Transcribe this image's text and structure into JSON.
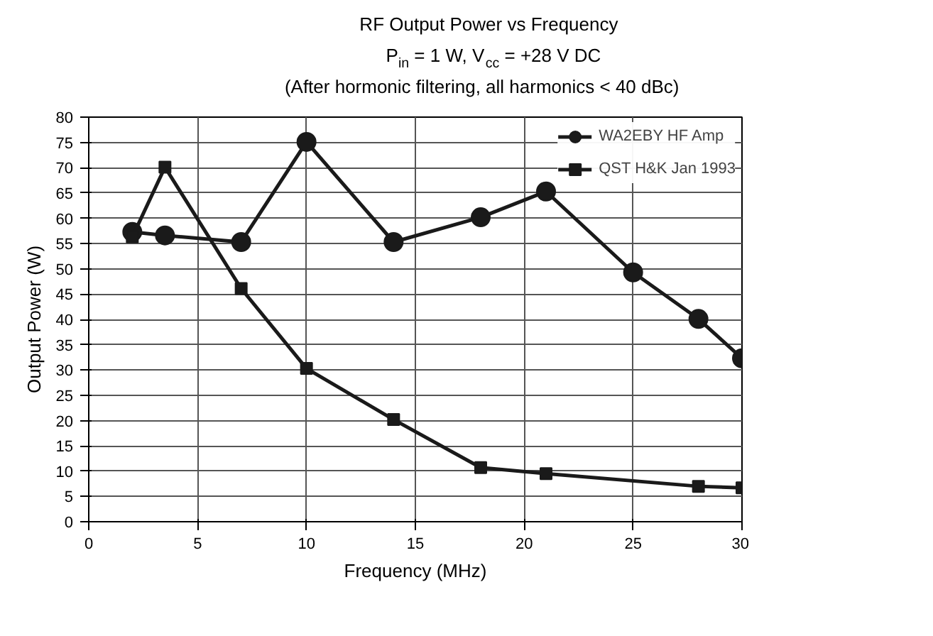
{
  "chart_data": {
    "type": "line",
    "title": "RF Output Power vs Frequency",
    "subtitle": "P$_{in}$ = 1 W, V$_{cc}$ = +28 V DC",
    "annotations": [
      "(After hormonic filtering, all harmonics < 40 dBc)"
    ],
    "xlabel": "Frequency (MHz)",
    "ylabel": "Output Power (W)",
    "xlim": [
      0,
      30
    ],
    "xticks": [
      0,
      5,
      10,
      15,
      20,
      25,
      30
    ],
    "ylim": [
      0,
      80
    ],
    "yticks": [
      0,
      5,
      10,
      15,
      20,
      25,
      30,
      35,
      40,
      45,
      50,
      55,
      60,
      65,
      70,
      75,
      80
    ],
    "grid": true,
    "legend": "right",
    "line_style": "solid",
    "series": [
      {
        "name": "WA2EBY HF Amp",
        "color": "#1a1a1a",
        "marker": "circle",
        "x": [
          2,
          3.5,
          7,
          10,
          14,
          18,
          21,
          25,
          28,
          30
        ],
        "values": [
          57.3,
          56.6,
          55.3,
          75.1,
          55.3,
          60.2,
          65.3,
          49.3,
          40.1,
          32.3
        ]
      },
      {
        "name": "QST H&K Jan 1993",
        "color": "#1a1a1a",
        "marker": "square",
        "x": [
          2,
          3.5,
          7,
          10,
          14,
          18,
          21,
          28,
          30
        ],
        "values": [
          56.3,
          70.1,
          46.1,
          30.3,
          20.2,
          10.7,
          9.5,
          7.0,
          6.7
        ]
      }
    ]
  }
}
